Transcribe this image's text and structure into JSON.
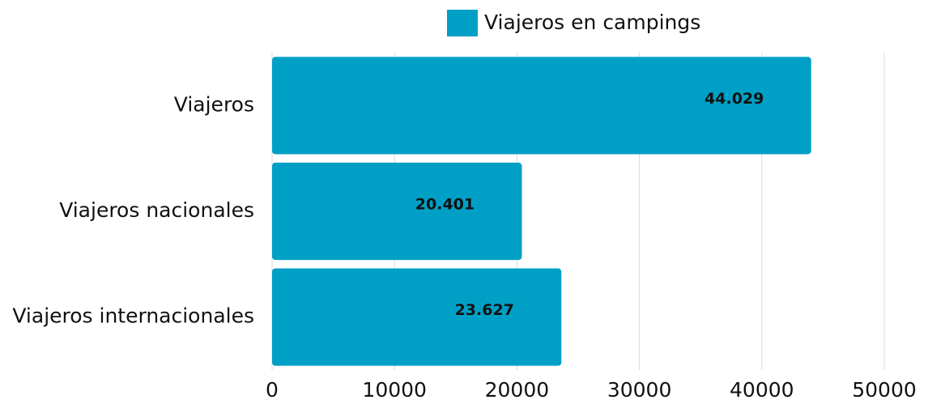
{
  "chart_data": {
    "type": "bar",
    "orientation": "horizontal",
    "categories": [
      "Viajeros",
      "Viajeros nacionales",
      "Viajeros internacionales"
    ],
    "series": [
      {
        "name": "Viajeros en campings",
        "color": "#00a0c6",
        "values": [
          44029,
          20401,
          23627
        ],
        "value_labels": [
          "44.029",
          "20.401",
          "23.627"
        ]
      }
    ],
    "xlim": [
      0,
      50000
    ],
    "xticks": [
      0,
      10000,
      20000,
      30000,
      40000,
      50000
    ],
    "grid": true,
    "legend": "top"
  }
}
